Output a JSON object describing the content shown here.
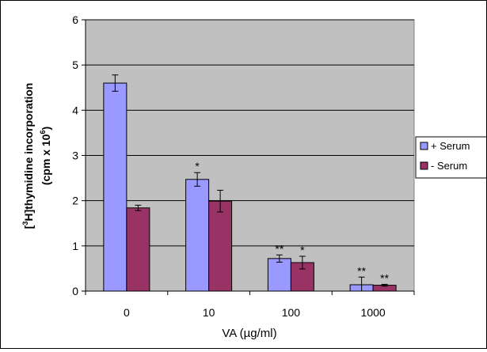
{
  "chart_data": {
    "type": "bar",
    "categories": [
      "0",
      "10",
      "100",
      "1000"
    ],
    "series": [
      {
        "name": "+ Serum",
        "color": "#9999FF",
        "values": [
          4.6,
          2.47,
          0.72,
          0.14
        ],
        "errors": [
          0.18,
          0.15,
          0.08,
          0.17
        ],
        "annotations": [
          "",
          "*",
          "**",
          "**"
        ]
      },
      {
        "name": "- Serum",
        "color": "#993366",
        "values": [
          1.84,
          1.99,
          0.63,
          0.13
        ],
        "errors": [
          0.06,
          0.24,
          0.14,
          0.02
        ],
        "annotations": [
          "",
          "",
          "*",
          "**"
        ]
      }
    ],
    "ylim": [
      0,
      6
    ],
    "yticks": [
      "0",
      "1",
      "2",
      "3",
      "4",
      "5",
      "6"
    ],
    "xlabel": "VA  (µg/ml)",
    "ylabel": {
      "open_bracket": "[",
      "superscript": "3",
      "main": "H]thymidine incorporation",
      "unit_prefix": "(cpm x 10",
      "unit_exponent": "6",
      "unit_suffix": ")"
    },
    "plot_background": "#C0C0C0",
    "grid": true,
    "legend_position": "right"
  }
}
